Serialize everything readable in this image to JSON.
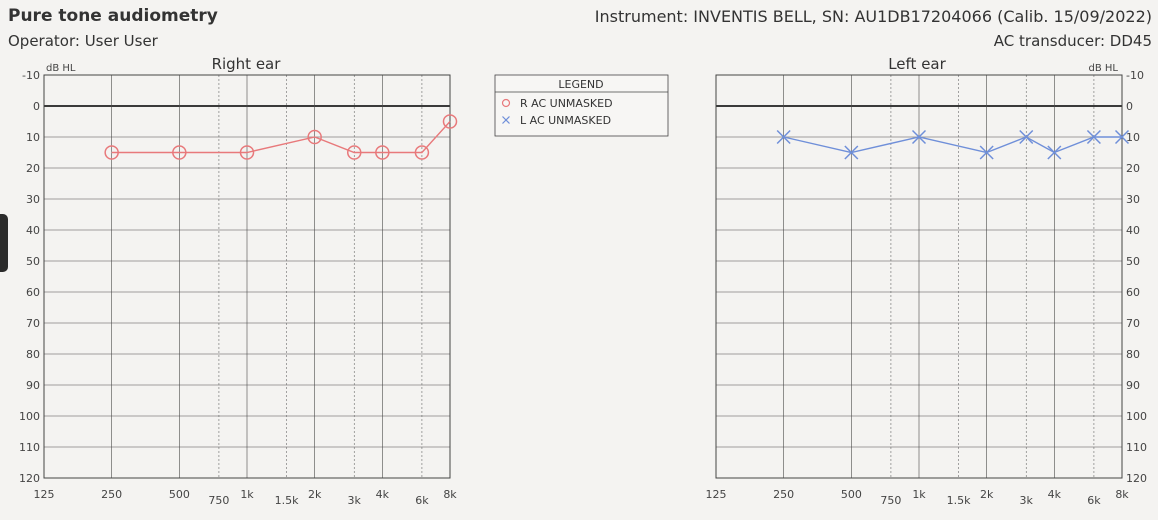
{
  "header": {
    "title": "Pure tone audiometry",
    "operator": "Operator: User User",
    "instrument": "Instrument: INVENTIS BELL, SN: AU1DB17204066 (Calib. 15/09/2022)",
    "transducer": "AC transducer: DD45"
  },
  "legend": {
    "title": "LEGEND",
    "items": [
      "R AC UNMASKED",
      "L AC UNMASKED"
    ]
  },
  "colors": {
    "right": "#e8797b",
    "left": "#6f8fd9"
  },
  "chart_data": [
    {
      "type": "line",
      "title": "Right ear",
      "ylabel": "dB HL",
      "x_scale": "log",
      "y_inverted": true,
      "ylim": [
        -10,
        120
      ],
      "y_ticks": [
        -10,
        0,
        10,
        20,
        30,
        40,
        50,
        60,
        70,
        80,
        90,
        100,
        110,
        120
      ],
      "x_ticks": [
        125,
        250,
        500,
        750,
        1000,
        1500,
        2000,
        3000,
        4000,
        6000,
        8000
      ],
      "x_tick_labels": [
        "125",
        "250",
        "500",
        "750",
        "1k",
        "1.5k",
        "2k",
        "3k",
        "4k",
        "6k",
        "8k"
      ],
      "grid": true,
      "series": [
        {
          "name": "R AC UNMASKED",
          "marker": "circle",
          "x": [
            250,
            500,
            1000,
            2000,
            3000,
            4000,
            6000,
            8000
          ],
          "y": [
            15,
            15,
            15,
            10,
            15,
            15,
            15,
            5
          ]
        }
      ]
    },
    {
      "type": "line",
      "title": "Left ear",
      "ylabel": "dB HL",
      "x_scale": "log",
      "y_inverted": true,
      "ylim": [
        -10,
        120
      ],
      "y_ticks": [
        -10,
        0,
        10,
        20,
        30,
        40,
        50,
        60,
        70,
        80,
        90,
        100,
        110,
        120
      ],
      "x_ticks": [
        125,
        250,
        500,
        750,
        1000,
        1500,
        2000,
        3000,
        4000,
        6000,
        8000
      ],
      "x_tick_labels": [
        "125",
        "250",
        "500",
        "750",
        "1k",
        "1.5k",
        "2k",
        "3k",
        "4k",
        "6k",
        "8k"
      ],
      "grid": true,
      "series": [
        {
          "name": "L AC UNMASKED",
          "marker": "cross",
          "x": [
            250,
            500,
            1000,
            2000,
            3000,
            4000,
            6000,
            8000
          ],
          "y": [
            10,
            15,
            10,
            15,
            10,
            15,
            10,
            10
          ]
        }
      ]
    }
  ]
}
